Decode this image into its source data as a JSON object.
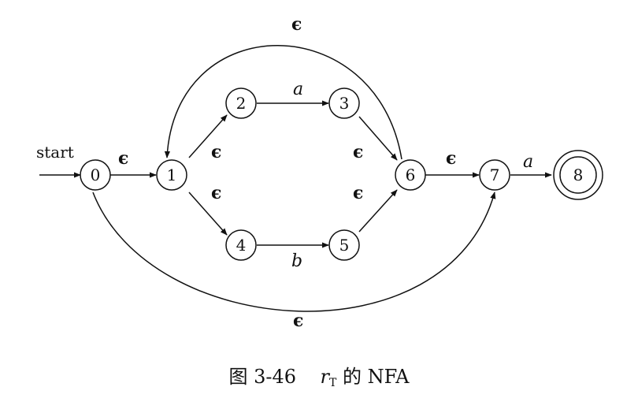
{
  "diagram": {
    "start_label": "start",
    "states": [
      {
        "id": "0",
        "label": "0",
        "accepting": false
      },
      {
        "id": "1",
        "label": "1",
        "accepting": false
      },
      {
        "id": "2",
        "label": "2",
        "accepting": false
      },
      {
        "id": "3",
        "label": "3",
        "accepting": false
      },
      {
        "id": "4",
        "label": "4",
        "accepting": false
      },
      {
        "id": "5",
        "label": "5",
        "accepting": false
      },
      {
        "id": "6",
        "label": "6",
        "accepting": false
      },
      {
        "id": "7",
        "label": "7",
        "accepting": false
      },
      {
        "id": "8",
        "label": "8",
        "accepting": true
      }
    ],
    "transitions": [
      {
        "from": "0",
        "to": "1",
        "label": "ϵ"
      },
      {
        "from": "1",
        "to": "2",
        "label": "ϵ"
      },
      {
        "from": "1",
        "to": "4",
        "label": "ϵ"
      },
      {
        "from": "2",
        "to": "3",
        "label": "a"
      },
      {
        "from": "4",
        "to": "5",
        "label": "b"
      },
      {
        "from": "3",
        "to": "6",
        "label": "ϵ"
      },
      {
        "from": "5",
        "to": "6",
        "label": "ϵ"
      },
      {
        "from": "6",
        "to": "1",
        "label": "ϵ"
      },
      {
        "from": "6",
        "to": "7",
        "label": "ϵ"
      },
      {
        "from": "0",
        "to": "7",
        "label": "ϵ"
      },
      {
        "from": "7",
        "to": "8",
        "label": "a"
      }
    ]
  },
  "caption": {
    "prefix": "图 3-46",
    "var": "r",
    "sub": "T",
    "suffix": " 的 NFA"
  }
}
